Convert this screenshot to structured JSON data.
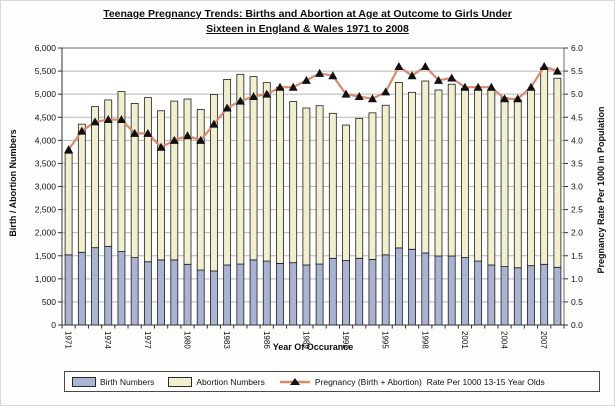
{
  "page_title": "Teenage pregnancy trends chart",
  "chart_data": {
    "type": "bar",
    "subtype": "stacked-bars-with-line-overlay",
    "title_line1": "Teenage Pregnancy Trends: Births and Abortion at Age at Outcome to Girls Under",
    "title_line2": "Sixteen in England & Wales 1971 to 2008",
    "x_axis_title": "Year Of Occurance",
    "y_left_title": "Birth / Abortion Numbers",
    "y_right_title": "Pregnancy Rate Per 1000 in Population",
    "grid": "horizontal-major-only",
    "legend_position": "bottom",
    "years": [
      1971,
      1972,
      1973,
      1974,
      1975,
      1976,
      1977,
      1978,
      1979,
      1980,
      1981,
      1982,
      1983,
      1984,
      1985,
      1986,
      1987,
      1988,
      1989,
      1990,
      1991,
      1992,
      1993,
      1994,
      1995,
      1996,
      1997,
      1998,
      1999,
      2000,
      2001,
      2002,
      2003,
      2004,
      2005,
      2006,
      2007,
      2008
    ],
    "x_tick_labels": [
      "1971",
      "1974",
      "1977",
      "1980",
      "1983",
      "1986",
      "1989",
      "1992",
      "1995",
      "1998",
      "2001",
      "2004",
      "2007"
    ],
    "y_left": {
      "min": 0,
      "max": 6000,
      "step": 500,
      "tick_labels": [
        "0",
        "500",
        "1,000",
        "1,500",
        "2,000",
        "2,500",
        "3,000",
        "3,500",
        "4,000",
        "4,500",
        "5,000",
        "5,500",
        "6,000"
      ]
    },
    "y_right": {
      "min": 0.0,
      "max": 6.0,
      "step": 0.5,
      "tick_labels": [
        "0.0",
        "0.5",
        "1.0",
        "1.5",
        "2.0",
        "2.5",
        "3.0",
        "3.5",
        "4.0",
        "4.5",
        "5.0",
        "5.5",
        "6.0"
      ]
    },
    "series": [
      {
        "name": "Birth Numbers",
        "type": "bar",
        "stack": "total",
        "axis": "left",
        "values": [
          1520,
          1575,
          1675,
          1700,
          1590,
          1460,
          1370,
          1410,
          1410,
          1315,
          1190,
          1170,
          1300,
          1320,
          1410,
          1385,
          1335,
          1350,
          1300,
          1320,
          1445,
          1395,
          1445,
          1420,
          1520,
          1670,
          1640,
          1560,
          1495,
          1495,
          1460,
          1385,
          1300,
          1265,
          1240,
          1285,
          1315,
          1250
        ]
      },
      {
        "name": "Abortion Numbers",
        "type": "bar",
        "stack": "total",
        "axis": "left",
        "values": [
          2200,
          2775,
          3055,
          3175,
          3465,
          3340,
          3555,
          3230,
          3440,
          3580,
          3480,
          3825,
          4020,
          4110,
          3970,
          3865,
          3815,
          3490,
          3400,
          3430,
          3140,
          2935,
          3030,
          3175,
          3240,
          3585,
          3400,
          3725,
          3595,
          3720,
          3665,
          3705,
          3800,
          3660,
          3635,
          3805,
          4260,
          4095
        ]
      },
      {
        "name": "Pregnancy (Birth + Abortion)  Rate Per 1000 13-15 Year Olds",
        "type": "line",
        "axis": "right",
        "marker": "filled-triangle",
        "values": [
          3.8,
          4.2,
          4.4,
          4.45,
          4.45,
          4.15,
          4.15,
          3.85,
          4.0,
          4.1,
          4.0,
          4.35,
          4.7,
          4.85,
          4.95,
          5.0,
          5.15,
          5.15,
          5.3,
          5.45,
          5.4,
          5.0,
          4.95,
          4.9,
          5.05,
          5.6,
          5.4,
          5.6,
          5.3,
          5.35,
          5.15,
          5.15,
          5.15,
          4.9,
          4.9,
          5.15,
          5.6,
          5.5
        ]
      }
    ]
  },
  "legend": {
    "birth_label": "Birth Numbers",
    "abortion_label": "Abortion Numbers",
    "rate_label": "Pregnancy (Birth + Abortion)  Rate Per 1000 13-15 Year Olds"
  },
  "colors": {
    "birth_bar": "#a9b4d3",
    "abortion_bar": "#f2efce",
    "bar_border": "#1d1d1d",
    "rate_line": "#dc8a6a",
    "marker": "#111111",
    "grid": "#b5b5b5",
    "frame": "#6a6a6a",
    "axis": "#333333",
    "text": "#111111"
  }
}
